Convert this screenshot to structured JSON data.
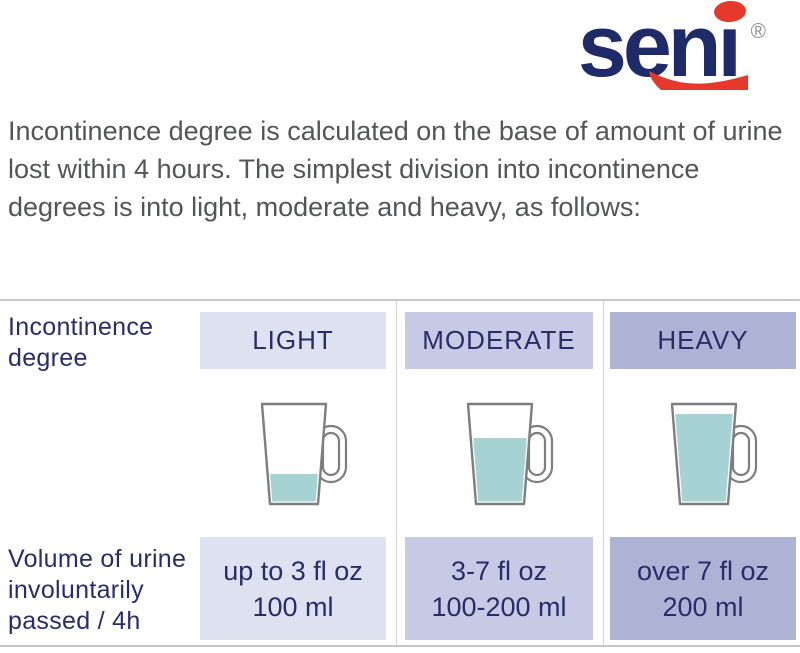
{
  "brand": {
    "logo_text": "seni",
    "registered_mark": "®",
    "navy": "#1f2a68",
    "red": "#e6392e"
  },
  "intro": {
    "text": "Incontinence degree is calculated on the base of amount of urine lost within 4 hours. The simplest division into incontinence degrees is into light, moderate and heavy, as follows:"
  },
  "table": {
    "text_color": "#282d6a",
    "liquid_color": "#a6d2d3",
    "row_labels": {
      "degree": "Incontinence degree",
      "volume": "Volume of urine involuntarily passed / 4h"
    },
    "columns": [
      {
        "label": "LIGHT",
        "bg": "#dee1f0",
        "cup_fill_percent": 30,
        "volume_line1": "up to 3 fl oz",
        "volume_line2": "100 ml"
      },
      {
        "label": "MODERATE",
        "bg": "#c6cae4",
        "cup_fill_percent": 66,
        "volume_line1": "3-7 fl oz",
        "volume_line2": "100-200 ml"
      },
      {
        "label": "HEAVY",
        "bg": "#aeb3d5",
        "cup_fill_percent": 90,
        "volume_line1": "over 7 fl oz",
        "volume_line2": "200 ml"
      }
    ]
  }
}
